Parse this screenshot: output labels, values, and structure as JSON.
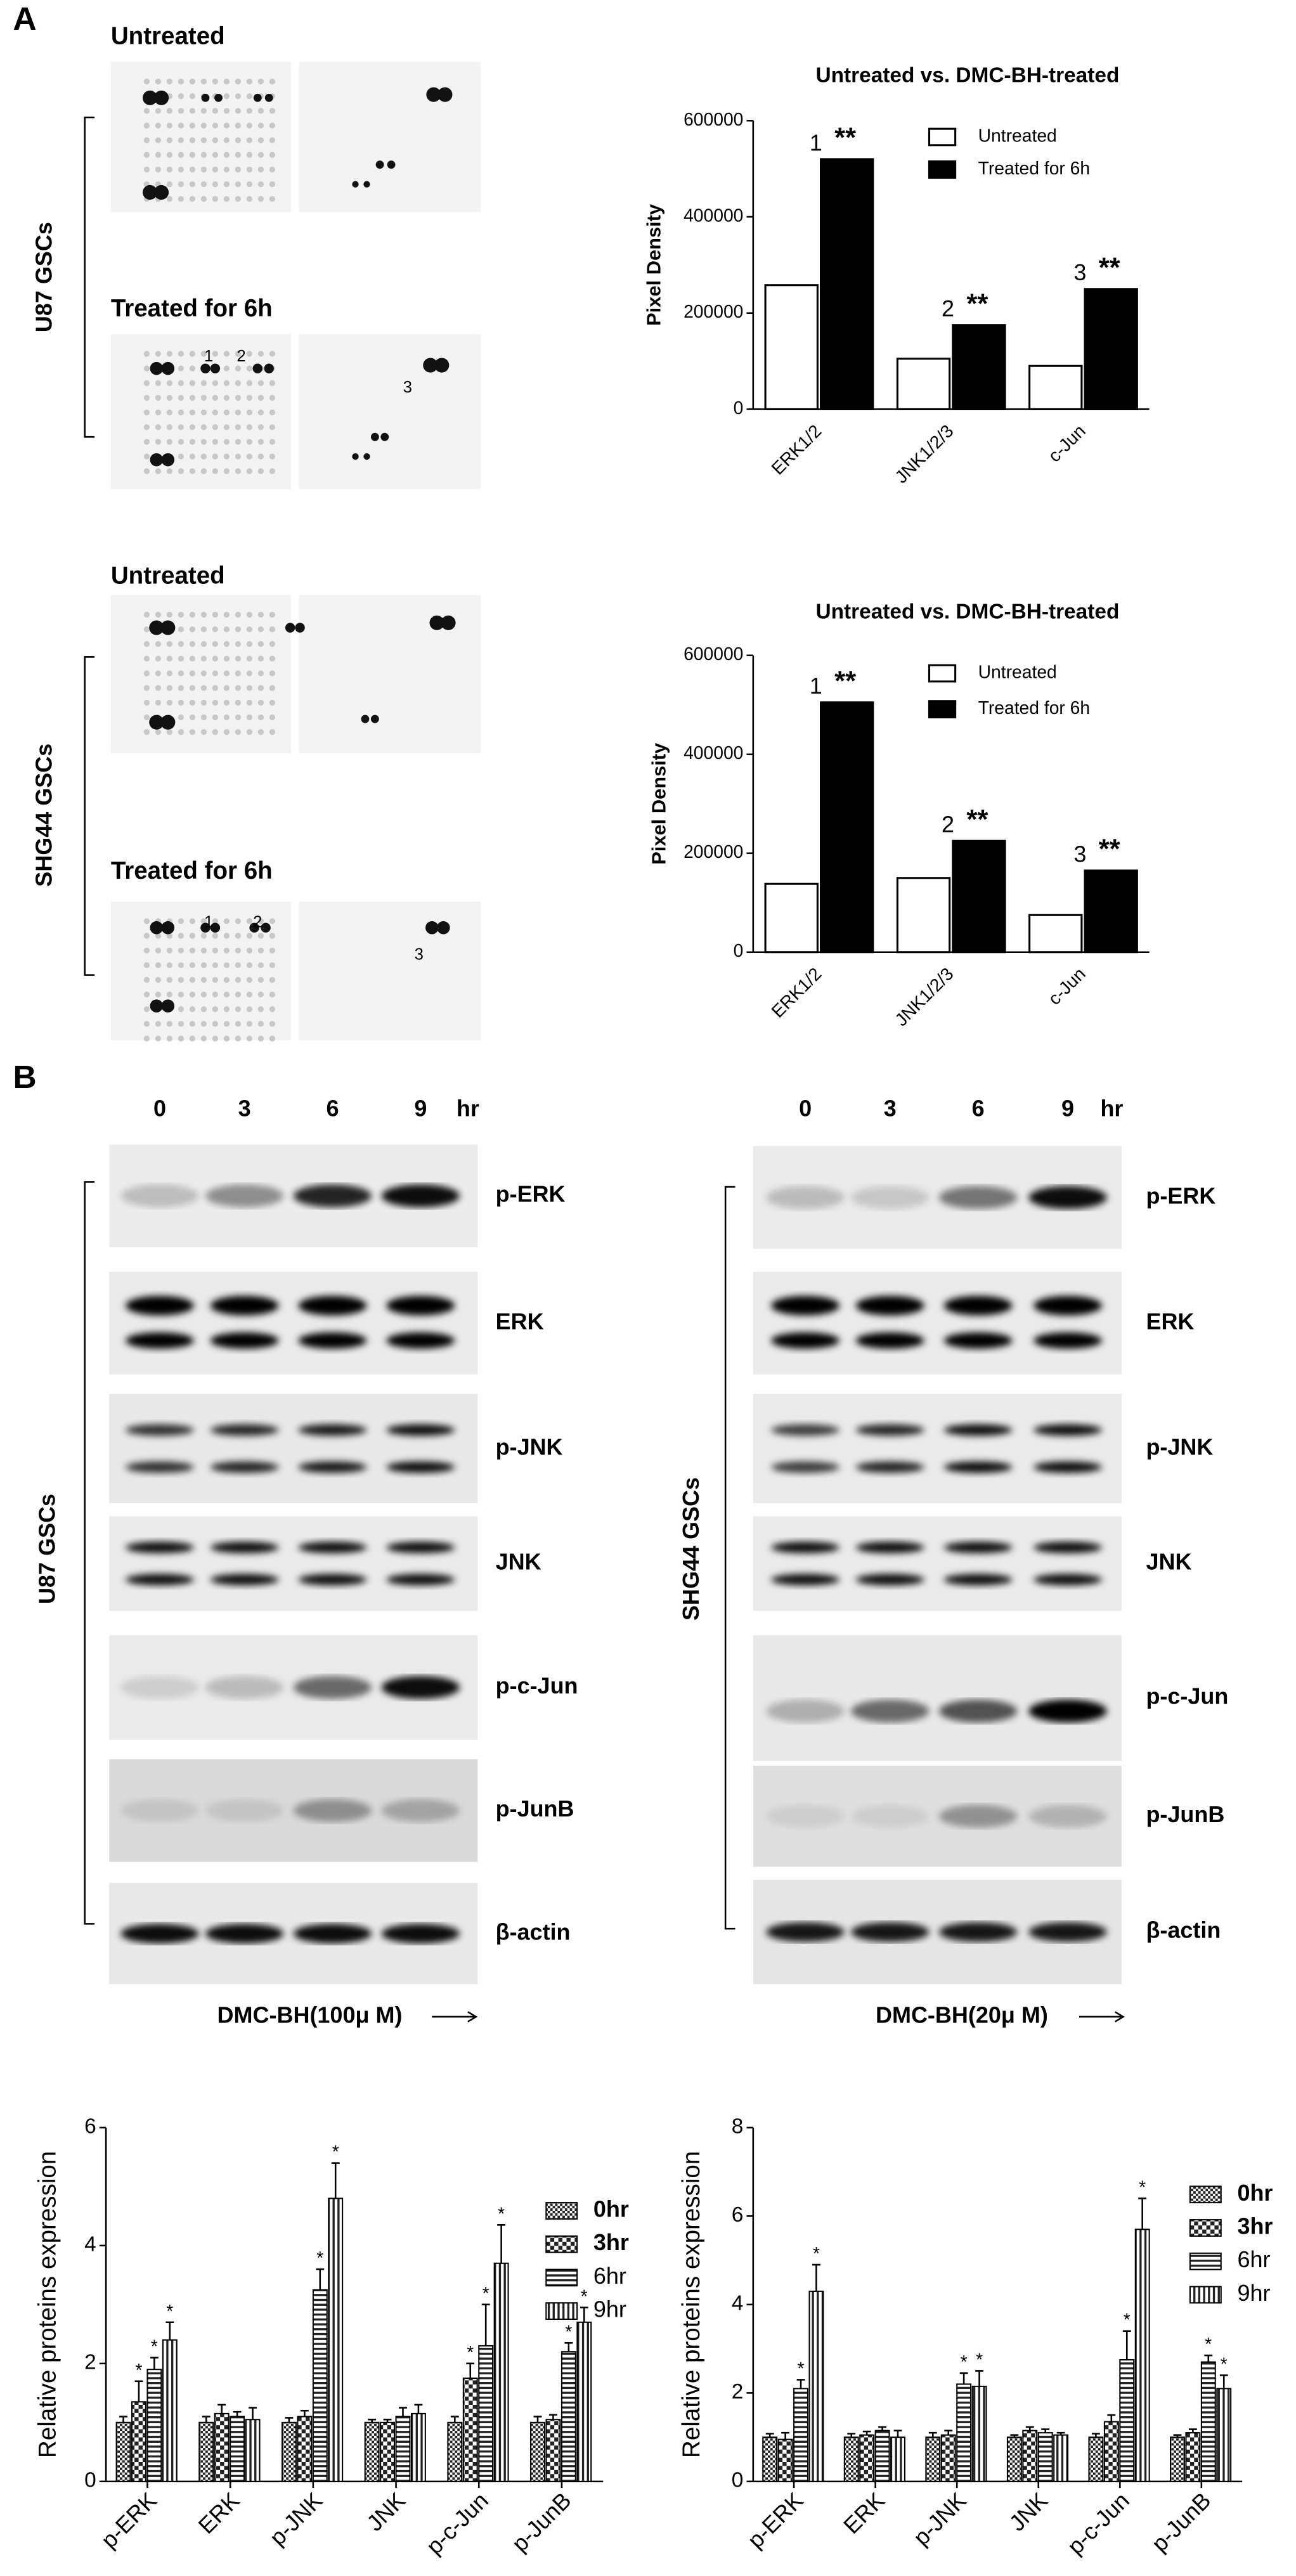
{
  "panel_labels": [
    "A",
    "B"
  ],
  "arrays": [
    {
      "cell_line": "U87 GSCs",
      "conditions": [
        "Untreated",
        "Treated for 6h"
      ],
      "spot_labels": [
        "1",
        "2",
        "3"
      ]
    },
    {
      "cell_line": "SHG44 GSCs",
      "conditions": [
        "Untreated",
        "Treated for 6h"
      ],
      "spot_labels": [
        "1",
        "2",
        "3"
      ]
    }
  ],
  "blots": [
    {
      "cell_line": "U87 GSCs",
      "lanes": [
        "0",
        "3",
        "6",
        "9"
      ],
      "unit": "hr",
      "proteins": [
        "p-ERK",
        "ERK",
        "p-JNK",
        "JNK",
        "p-c-Jun",
        "p-JunB",
        "β-actin"
      ],
      "treatment": "DMC-BH(100μ M)"
    },
    {
      "cell_line": "SHG44 GSCs",
      "lanes": [
        "0",
        "3",
        "6",
        "9"
      ],
      "unit": "hr",
      "proteins": [
        "p-ERK",
        "ERK",
        "p-JNK",
        "JNK",
        "p-c-Jun",
        "p-JunB",
        "β-actin"
      ],
      "treatment": "DMC-BH(20μ M)"
    }
  ],
  "chart_data": [
    {
      "type": "bar",
      "title": "Untreated vs. DMC-BH-treated",
      "ylabel": "Pixel Density",
      "categories": [
        "ERK1/2",
        "JNK1/2/3",
        "c-Jun"
      ],
      "series": [
        {
          "name": "Untreated",
          "color": "#ffffff",
          "values": [
            258000,
            105000,
            90000
          ]
        },
        {
          "name": "Treated for 6h",
          "color": "#000000",
          "values": [
            520000,
            175000,
            250000
          ],
          "value_labels": [
            "1",
            "2",
            "3"
          ],
          "significance": [
            "**",
            "**",
            "**"
          ]
        }
      ],
      "ylim": [
        0,
        600000
      ],
      "yticks": [
        0,
        200000,
        400000,
        600000
      ]
    },
    {
      "type": "bar",
      "title": "Untreated vs. DMC-BH-treated",
      "ylabel": "Pixel Density",
      "categories": [
        "ERK1/2",
        "JNK1/2/3",
        "c-Jun"
      ],
      "series": [
        {
          "name": "Untreated",
          "color": "#ffffff",
          "values": [
            138000,
            150000,
            75000
          ]
        },
        {
          "name": "Treated for 6h",
          "color": "#000000",
          "values": [
            505000,
            225000,
            165000
          ],
          "value_labels": [
            "1",
            "2",
            "3"
          ],
          "significance": [
            "**",
            "**",
            "**"
          ]
        }
      ],
      "ylim": [
        0,
        600000
      ],
      "yticks": [
        0,
        200000,
        400000,
        600000
      ]
    },
    {
      "type": "errorbar",
      "ylabel": "Relative proteins expression",
      "categories": [
        "p-ERK",
        "ERK",
        "p-JNK",
        "JNK",
        "p-c-Jun",
        "p-JunB"
      ],
      "series": [
        {
          "name": "0hr",
          "pattern": "checker-fine",
          "values": [
            1,
            1,
            1,
            1,
            1,
            1
          ],
          "errors": [
            0.1,
            0.1,
            0.08,
            0.05,
            0.1,
            0.1
          ],
          "significance": [
            null,
            null,
            null,
            null,
            null,
            null
          ]
        },
        {
          "name": "3hr",
          "pattern": "checker-coarse",
          "values": [
            1.35,
            1.15,
            1.1,
            1,
            1.75,
            1.05
          ],
          "errors": [
            0.35,
            0.15,
            0.1,
            0.05,
            0.25,
            0.08
          ],
          "significance": [
            "*",
            null,
            null,
            null,
            "*",
            null
          ]
        },
        {
          "name": "6hr",
          "pattern": "horizontal",
          "values": [
            1.9,
            1.1,
            3.25,
            1.1,
            2.3,
            2.2
          ],
          "errors": [
            0.2,
            0.08,
            0.35,
            0.15,
            0.7,
            0.15
          ],
          "significance": [
            "*",
            null,
            "*",
            null,
            "*",
            "*"
          ]
        },
        {
          "name": "9hr",
          "pattern": "vertical",
          "values": [
            2.4,
            1.05,
            4.8,
            1.15,
            3.7,
            2.7
          ],
          "errors": [
            0.3,
            0.2,
            0.6,
            0.15,
            0.65,
            0.25
          ],
          "significance": [
            "*",
            null,
            "*",
            null,
            "*",
            "*"
          ]
        }
      ],
      "ylim": [
        0,
        6
      ],
      "yticks": [
        0,
        2,
        4,
        6
      ]
    },
    {
      "type": "errorbar",
      "ylabel": "Relative proteins expression",
      "categories": [
        "p-ERK",
        "ERK",
        "p-JNK",
        "JNK",
        "p-c-Jun",
        "p-JunB"
      ],
      "series": [
        {
          "name": "0hr",
          "pattern": "checker-fine",
          "values": [
            1,
            1,
            1,
            1,
            1,
            1
          ],
          "errors": [
            0.08,
            0.08,
            0.1,
            0.05,
            0.08,
            0.05
          ],
          "significance": [
            null,
            null,
            null,
            null,
            null,
            null
          ]
        },
        {
          "name": "3hr",
          "pattern": "checker-coarse",
          "values": [
            0.95,
            1.05,
            1.05,
            1.15,
            1.35,
            1.1
          ],
          "errors": [
            0.15,
            0.08,
            0.1,
            0.08,
            0.15,
            0.08
          ],
          "significance": [
            null,
            null,
            null,
            null,
            null,
            null
          ]
        },
        {
          "name": "6hr",
          "pattern": "horizontal",
          "values": [
            2.1,
            1.15,
            2.2,
            1.1,
            2.75,
            2.7
          ],
          "errors": [
            0.2,
            0.08,
            0.25,
            0.08,
            0.65,
            0.15
          ],
          "significance": [
            "*",
            null,
            "*",
            null,
            "*",
            "*"
          ]
        },
        {
          "name": "9hr",
          "pattern": "vertical",
          "values": [
            4.3,
            1,
            2.15,
            1.05,
            5.7,
            2.1
          ],
          "errors": [
            0.6,
            0.15,
            0.35,
            0.05,
            0.7,
            0.3
          ],
          "significance": [
            "*",
            null,
            "*",
            null,
            "*",
            "*"
          ]
        }
      ],
      "ylim": [
        0,
        8
      ],
      "yticks": [
        0,
        2,
        4,
        6,
        8
      ]
    }
  ]
}
